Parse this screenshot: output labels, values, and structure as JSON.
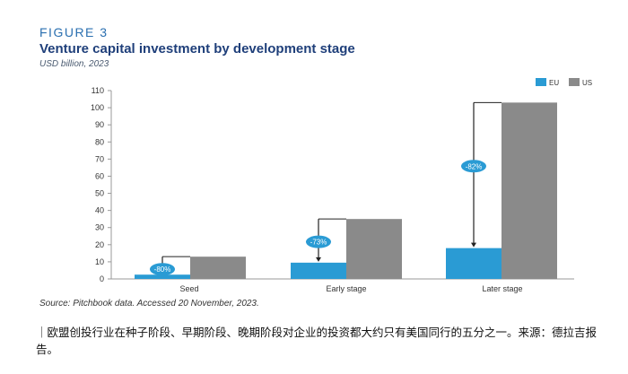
{
  "figure_label": "FIGURE 3",
  "source_note": "Source: Pitchbook data. Accessed 20 November, 2023.",
  "caption": "｜欧盟创投行业在种子阶段、早期阶段、晚期阶段对企业的投资都大约只有美国同行的五分之一。来源：德拉吉报告。",
  "colors": {
    "eu": "#2a9bd4",
    "us": "#8a8a8a",
    "badge": "#2a9bd4",
    "title": "#1f3f7a"
  },
  "chart_data": {
    "type": "bar",
    "title": "Venture capital investment by development stage",
    "subtitle": "USD billion, 2023",
    "categories": [
      "Seed",
      "Early stage",
      "Later stage"
    ],
    "series": [
      {
        "name": "EU",
        "values": [
          2.5,
          9.5,
          18
        ]
      },
      {
        "name": "US",
        "values": [
          13,
          35,
          103
        ]
      }
    ],
    "ylim": [
      0,
      110
    ],
    "yticks": [
      0,
      10,
      20,
      30,
      40,
      50,
      60,
      70,
      80,
      90,
      100,
      110
    ],
    "annotations": [
      "-80%",
      "-73%",
      "-82%"
    ],
    "legend_position": "top-right",
    "grid": false
  }
}
